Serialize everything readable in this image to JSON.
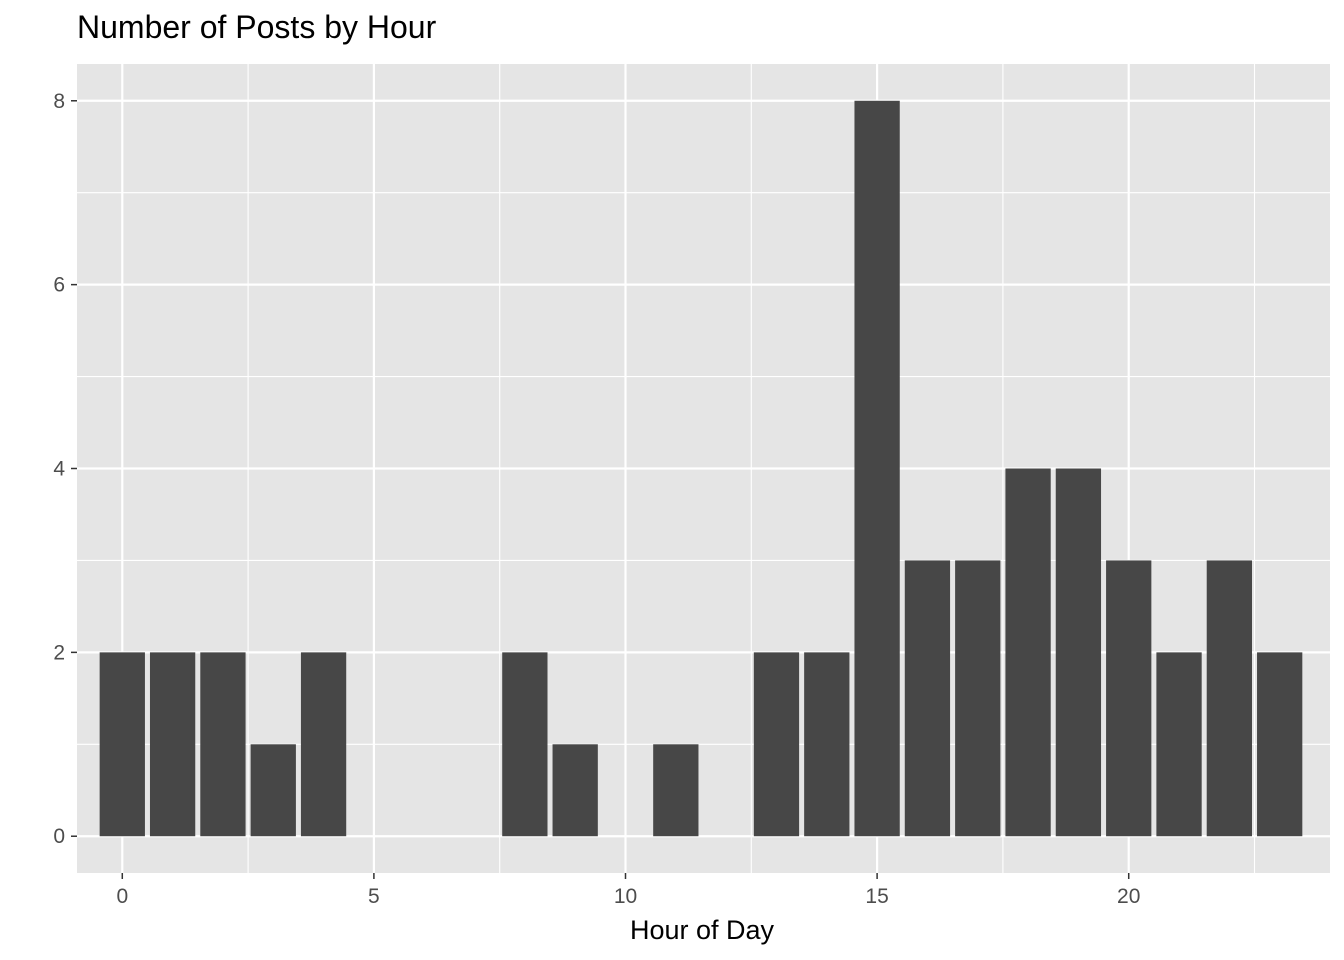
{
  "chart_data": {
    "type": "bar",
    "title": "Number of Posts by Hour",
    "xlabel": "Hour of Day",
    "ylabel": "",
    "x": [
      0,
      1,
      2,
      3,
      4,
      8,
      9,
      11,
      13,
      14,
      15,
      16,
      17,
      18,
      19,
      20,
      21,
      22,
      23
    ],
    "values": [
      2,
      2,
      2,
      1,
      2,
      2,
      1,
      1,
      2,
      2,
      8,
      3,
      3,
      4,
      4,
      3,
      2,
      3,
      2
    ],
    "xlim": [
      -0.9,
      24.0
    ],
    "ylim": [
      -0.4,
      8.4
    ],
    "x_ticks": [
      0,
      5,
      10,
      15,
      20
    ],
    "y_ticks": [
      0,
      2,
      4,
      6,
      8
    ],
    "grid": true,
    "legend": "none",
    "colors": {
      "panel_background": "#e5e5e5",
      "grid_line": "#ffffff",
      "bar_fill": "#474747",
      "tick_mark": "#333333",
      "tick_label": "#4d4d4d",
      "text": "#000000"
    }
  }
}
